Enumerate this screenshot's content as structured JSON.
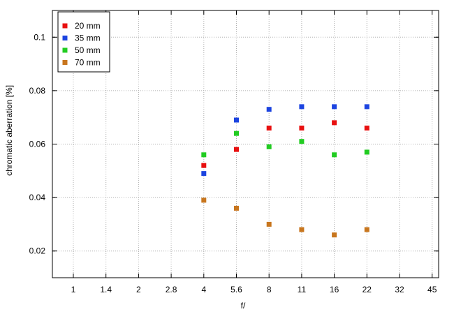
{
  "chart_data": {
    "type": "scatter",
    "xlabel": "f/",
    "ylabel": "chromatic  aberration [%]",
    "x_categories": [
      "1",
      "1.4",
      "2",
      "2.8",
      "4",
      "5.6",
      "8",
      "11",
      "16",
      "22",
      "32",
      "45"
    ],
    "x_scale": "log",
    "ylim": [
      0.01,
      0.11
    ],
    "y_ticks": [
      "0.02",
      "0.04",
      "0.06",
      "0.08",
      "0.1"
    ],
    "grid": true,
    "legend_position": "top-left",
    "series": [
      {
        "name": "20 mm",
        "color": "#e81010",
        "x": [
          "4",
          "5.6",
          "8",
          "11",
          "16",
          "22"
        ],
        "y": [
          0.052,
          0.058,
          0.066,
          0.066,
          0.068,
          0.066
        ]
      },
      {
        "name": "35 mm",
        "color": "#1c44e0",
        "x": [
          "4",
          "5.6",
          "8",
          "11",
          "16",
          "22"
        ],
        "y": [
          0.049,
          0.069,
          0.073,
          0.074,
          0.074,
          0.074
        ]
      },
      {
        "name": "50 mm",
        "color": "#22cc22",
        "x": [
          "4",
          "5.6",
          "8",
          "11",
          "16",
          "22"
        ],
        "y": [
          0.056,
          0.064,
          0.059,
          0.061,
          0.056,
          0.057
        ]
      },
      {
        "name": "70 mm",
        "color": "#c8761e",
        "x": [
          "4",
          "5.6",
          "8",
          "11",
          "16",
          "22"
        ],
        "y": [
          0.039,
          0.036,
          0.03,
          0.028,
          0.026,
          0.028
        ]
      }
    ]
  }
}
